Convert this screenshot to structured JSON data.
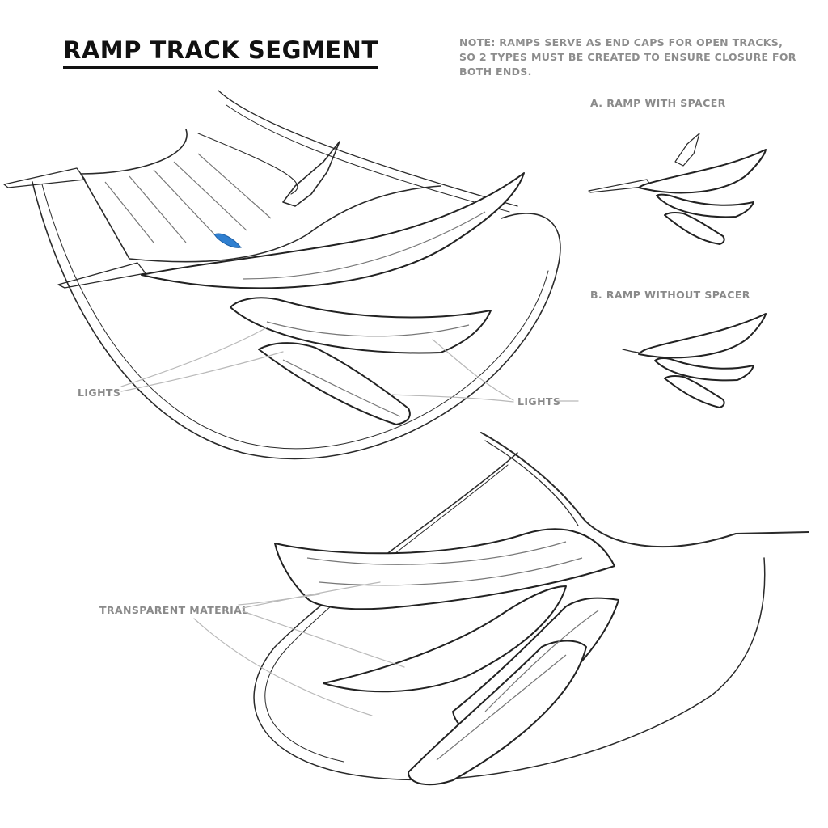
{
  "title": "RAMP TRACK SEGMENT",
  "note": "NOTE: RAMPS SERVE AS END CAPS FOR OPEN TRACKS, SO 2 TYPES MUST BE CREATED TO  ENSURE CLOSURE FOR BOTH ENDS.",
  "variants": {
    "a_label": "A. RAMP WITH SPACER",
    "b_label": "B. RAMP WITHOUT SPACER"
  },
  "callouts": {
    "lights_left": "LIGHTS",
    "lights_right": "LIGHTS",
    "transparent_material": "TRANSPARENT MATERIAL"
  },
  "colors": {
    "ink": "#2a2a2a",
    "label_gray": "#8a8a8a",
    "light_accent": "#2f7fd0"
  }
}
